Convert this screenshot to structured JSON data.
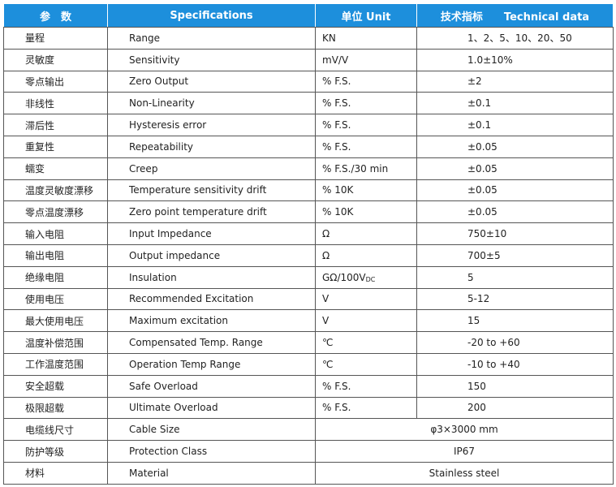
{
  "header": [
    "参　数",
    "Specifications",
    "单位 Unit",
    "技术指标　　Technical data"
  ],
  "rows": [
    {
      "param": "量程",
      "spec": "Range",
      "unit": "KN",
      "value": "1、2、5、10、20、50"
    },
    {
      "param": "灵敏度",
      "spec": "Sensitivity",
      "unit": "mV/V",
      "value": "1.0±10%"
    },
    {
      "param": "零点输出",
      "spec": "Zero Output",
      "unit": "% F.S.",
      "value": "±2"
    },
    {
      "param": "非线性",
      "spec": "Non-Linearity",
      "unit": "% F.S.",
      "value": "±0.1"
    },
    {
      "param": "滞后性",
      "spec": "Hysteresis error",
      "unit": "% F.S.",
      "value": "±0.1"
    },
    {
      "param": "重复性",
      "spec": "Repeatability",
      "unit": "% F.S.",
      "value": "±0.05"
    },
    {
      "param": "蠕变",
      "spec": "Creep",
      "unit": "% F.S./30 min",
      "value": "±0.05"
    },
    {
      "param": "温度灵敏度漂移",
      "spec": "Temperature sensitivity drift",
      "unit": "% 10K",
      "value": "±0.05"
    },
    {
      "param": "零点温度漂移",
      "spec": "Zero point temperature drift",
      "unit": "% 10K",
      "value": "±0.05"
    },
    {
      "param": "输入电阻",
      "spec": "Input Impedance",
      "unit": "Ω",
      "value": "750±10"
    },
    {
      "param": "输出电阻",
      "spec": "Output impedance",
      "unit": "Ω",
      "value": "700±5"
    },
    {
      "param": "绝缘电阻",
      "spec": "Insulation",
      "unit": "GΩ/100V",
      "unit_sub": "DC",
      "value": "5"
    },
    {
      "param": "使用电压",
      "spec": "Recommended Excitation",
      "unit": "V",
      "value": "5-12"
    },
    {
      "param": "最大使用电压",
      "spec": "Maximum excitation",
      "unit": "V",
      "value": "15"
    },
    {
      "param": "温度补偿范围",
      "spec": "Compensated Temp. Range",
      "unit": "℃",
      "value": "-20 to +60"
    },
    {
      "param": "工作温度范围",
      "spec": "Operation Temp Range",
      "unit": "℃",
      "value": "-10 to +40"
    },
    {
      "param": "安全超载",
      "spec": "Safe Overload",
      "unit": "% F.S.",
      "value": "150"
    },
    {
      "param": "极限超载",
      "spec": "Ultimate Overload",
      "unit": "% F.S.",
      "value": "200"
    },
    {
      "param": "电缆线尺寸",
      "spec": "Cable Size",
      "value": "φ3×3000 mm"
    },
    {
      "param": "防护等级",
      "spec": "Protection Class",
      "value": "IP67"
    },
    {
      "param": "材料",
      "spec": "Material",
      "value": "Stainless steel"
    }
  ]
}
